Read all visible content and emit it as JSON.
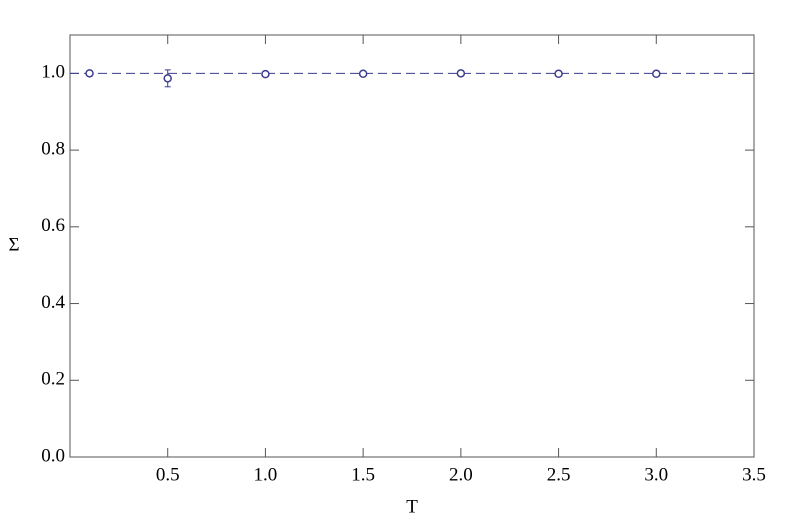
{
  "chart_data": {
    "type": "scatter",
    "x_label": "T",
    "y_label": "Σ",
    "color": "#3b3b8f",
    "series": [
      {
        "x": [
          0.1,
          0.5,
          1.0,
          1.5,
          2.0,
          2.5,
          3.0
        ],
        "values": [
          1.0,
          0.987,
          0.998,
          0.999,
          1.0,
          0.999,
          0.999
        ],
        "errors": [
          0.003,
          0.022,
          0.003,
          0.003,
          0.003,
          0.003,
          0.003
        ]
      }
    ],
    "reference_line": 1,
    "xlim": [
      0,
      3.5
    ],
    "xticks": [
      {
        "value": 0.5,
        "label": "0.5"
      },
      {
        "value": 1,
        "label": "1.0"
      },
      {
        "value": 1.5,
        "label": "1.5"
      },
      {
        "value": 2,
        "label": "2.0"
      },
      {
        "value": 2.5,
        "label": "2.5"
      },
      {
        "value": 3,
        "label": "3.0"
      },
      {
        "value": 3.5,
        "label": "3.5"
      }
    ],
    "ylim": [
      0,
      1.1
    ],
    "yticks": [
      {
        "value": 0,
        "label": "0.0"
      },
      {
        "value": 0.2,
        "label": "0.2"
      },
      {
        "value": 0.4,
        "label": "0.4"
      },
      {
        "value": 0.6,
        "label": "0.6"
      },
      {
        "value": 0.8,
        "label": "0.8"
      },
      {
        "value": 1,
        "label": "1.0"
      }
    ]
  }
}
